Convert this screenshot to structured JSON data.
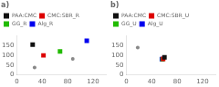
{
  "chart_data": [
    {
      "type": "scatter",
      "title": "a)",
      "series": [
        {
          "name": "PAA:CMC",
          "color": "#111111",
          "marker": "square",
          "x": [
            25
          ],
          "y": [
            155
          ]
        },
        {
          "name": "CMC:SBR_R",
          "color": "#dd0000",
          "marker": "square",
          "x": [
            42
          ],
          "y": [
            100
          ]
        },
        {
          "name": "GG_R",
          "color": "#22bb00",
          "marker": "square",
          "x": [
            68
          ],
          "y": [
            120
          ]
        },
        {
          "name": "Alg_R",
          "color": "#0000ee",
          "marker": "square",
          "x": [
            110
          ],
          "y": [
            175
          ]
        },
        {
          "color": "#888888",
          "marker": "circle",
          "x": [
            88,
            28
          ],
          "y": [
            82,
            38
          ]
        }
      ],
      "xlim": [
        0,
        140
      ],
      "ylim": [
        0,
        200
      ],
      "xticks": [
        0,
        40,
        80,
        120
      ],
      "yticks": [
        0,
        50,
        100,
        150
      ],
      "grid": false,
      "legend": "upper left"
    },
    {
      "type": "scatter",
      "title": "b)",
      "series": [
        {
          "name": "PAA:CMC",
          "color": "#111111",
          "marker": "square",
          "x": [
            60
          ],
          "y": [
            90
          ]
        },
        {
          "name": "CMC:SBR_U",
          "color": "#dd0000",
          "marker": "square",
          "x": [
            58
          ],
          "y": [
            82
          ]
        },
        {
          "name": "GG_U",
          "color": "#22bb00",
          "marker": "square",
          "x": [
            57
          ],
          "y": [
            80
          ]
        },
        {
          "name": "Alg_U",
          "color": "#0000ee",
          "marker": "square",
          "x": [
            56
          ],
          "y": [
            81
          ]
        },
        {
          "color": "#888888",
          "marker": "circle",
          "x": [
            18
          ],
          "y": [
            140
          ]
        }
      ],
      "xlim": [
        0,
        140
      ],
      "ylim": [
        0,
        200
      ],
      "xticks": [
        0,
        40,
        80,
        120
      ],
      "yticks": [
        0,
        50,
        100,
        150
      ],
      "grid": false,
      "legend": "upper left"
    }
  ]
}
